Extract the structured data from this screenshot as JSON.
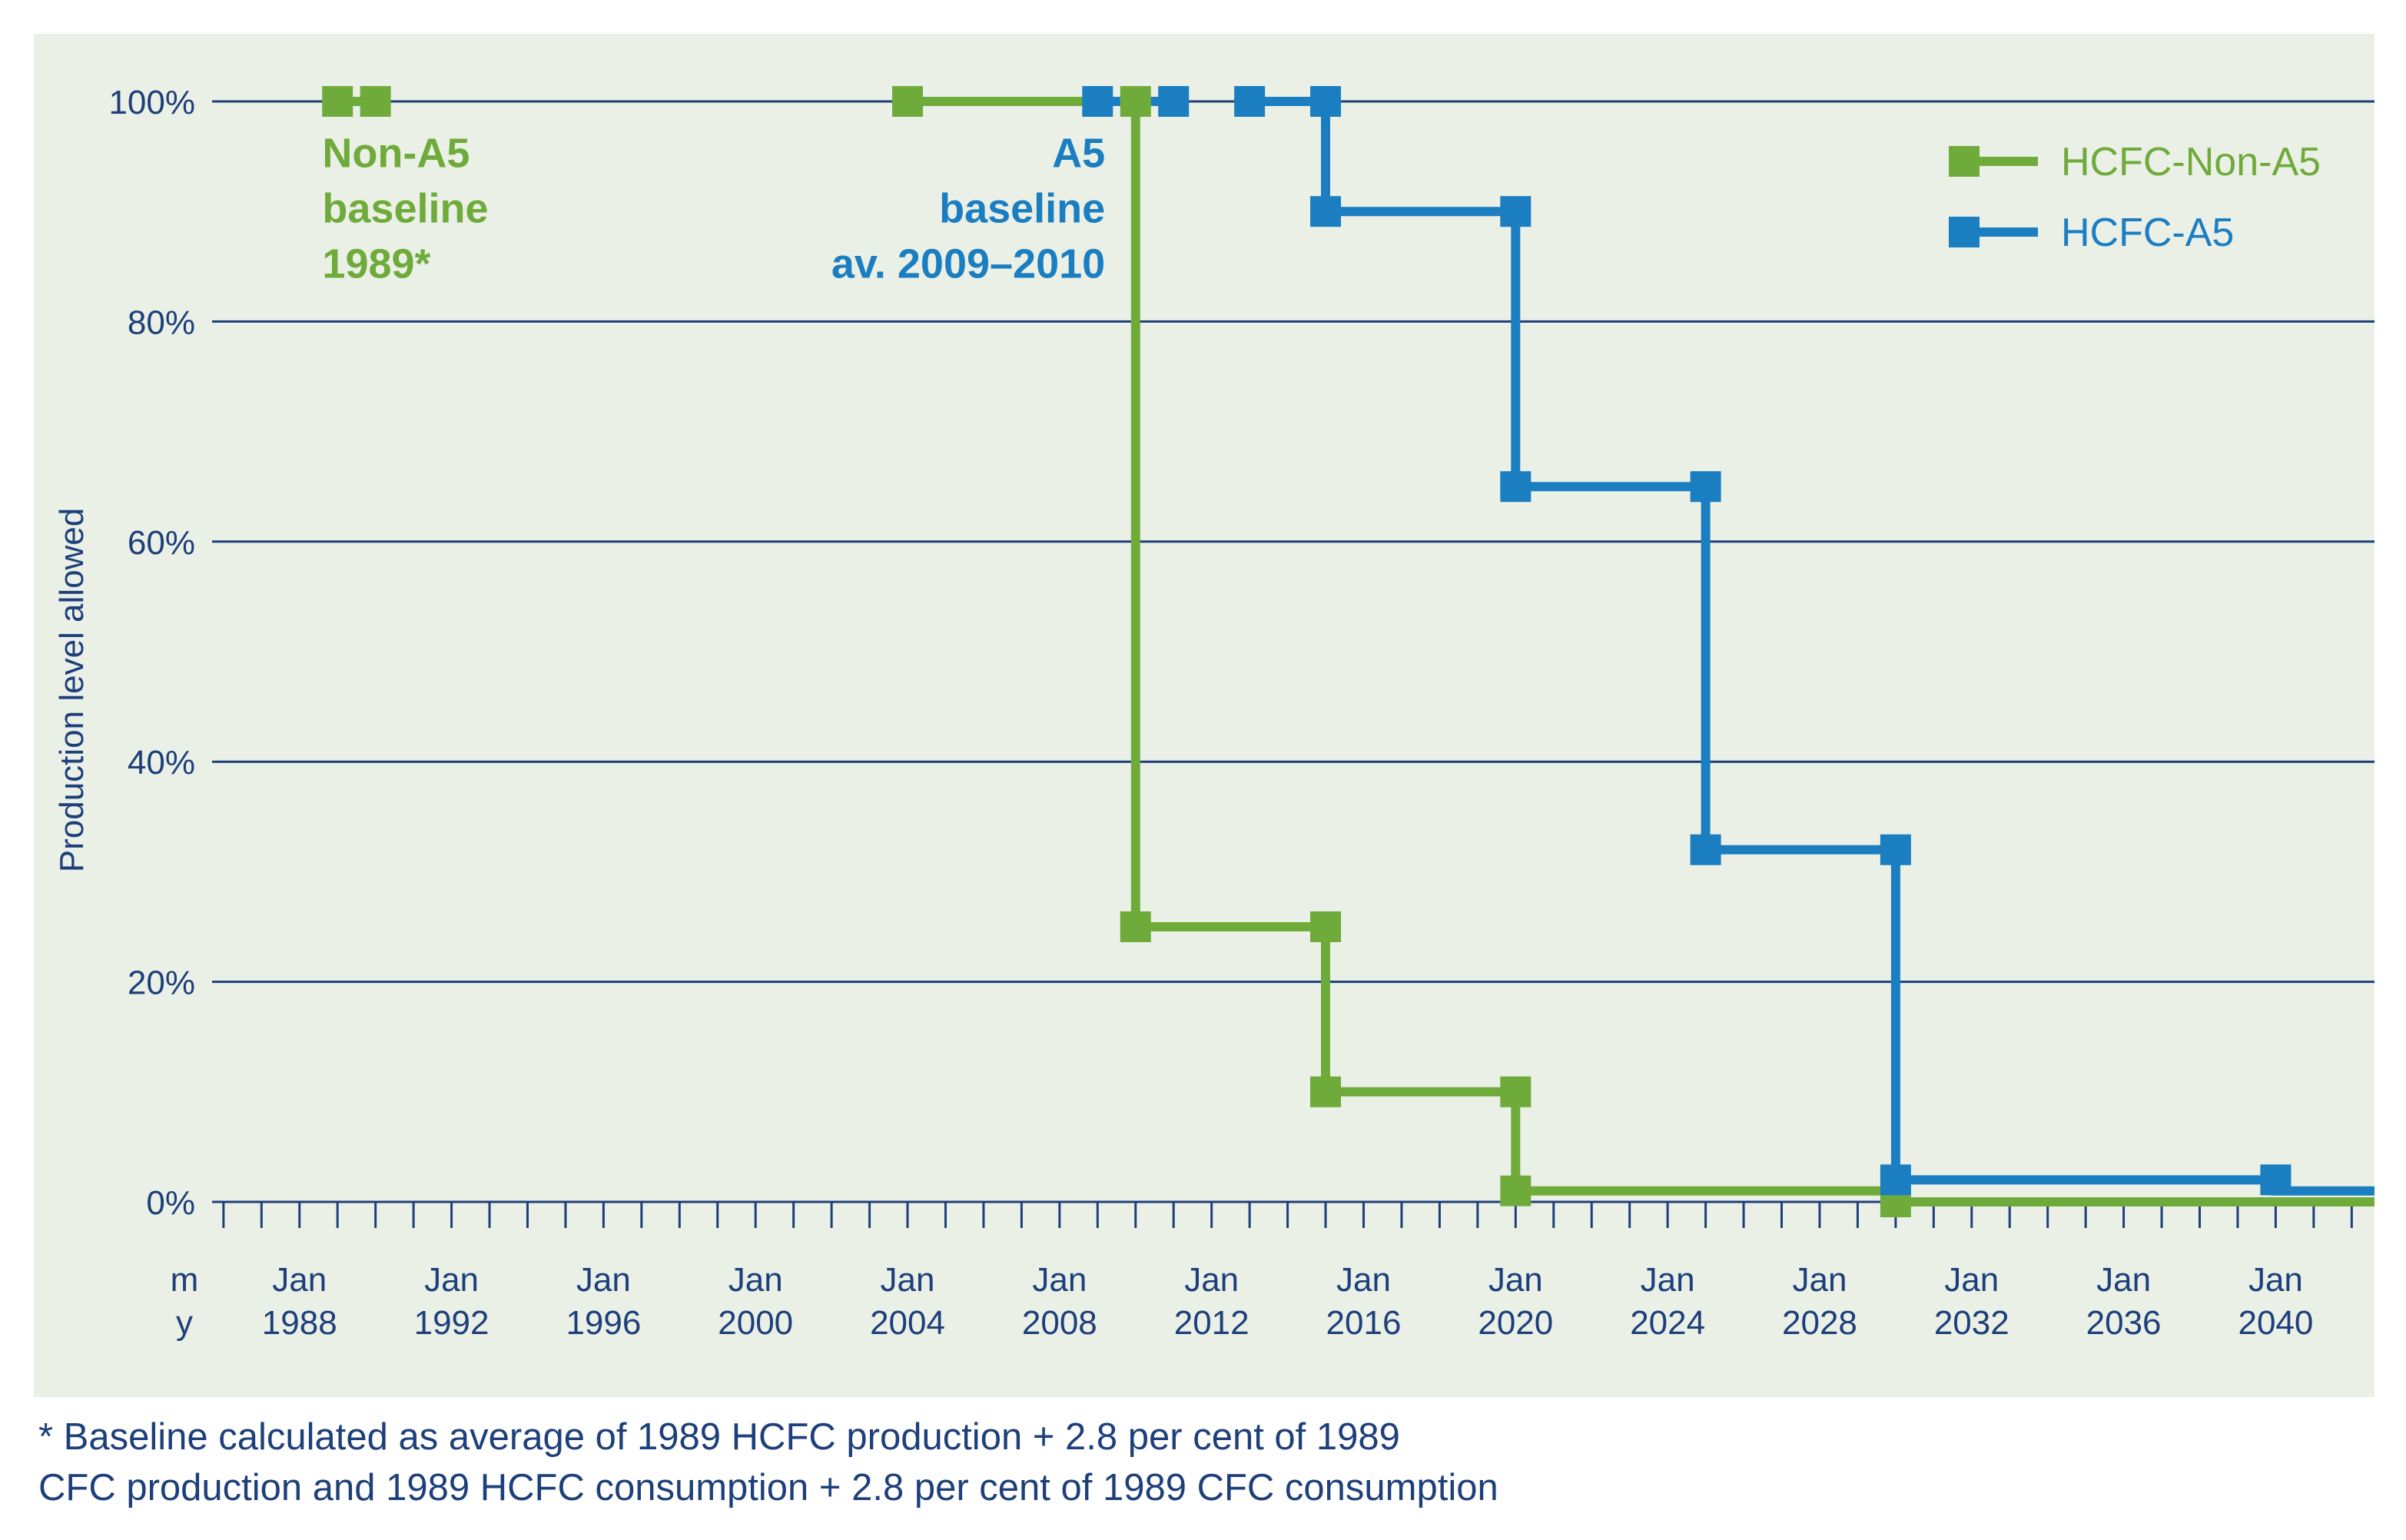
{
  "chart_data": {
    "type": "line",
    "step": true,
    "title": "",
    "xlabel": "",
    "ylabel": "Production level allowed",
    "xlim": [
      1985.7,
      2042.6
    ],
    "ylim": [
      0,
      100
    ],
    "grid": true,
    "y_ticks": [
      0,
      20,
      40,
      60,
      80,
      100
    ],
    "y_tick_labels": [
      "0%",
      "20%",
      "40%",
      "60%",
      "80%",
      "100%"
    ],
    "x_axis_row_labels": [
      "m",
      "y"
    ],
    "x_tick_labels": [
      {
        "x": 1988,
        "month": "Jan",
        "year": "1988"
      },
      {
        "x": 1992,
        "month": "Jan",
        "year": "1992"
      },
      {
        "x": 1996,
        "month": "Jan",
        "year": "1996"
      },
      {
        "x": 2000,
        "month": "Jan",
        "year": "2000"
      },
      {
        "x": 2004,
        "month": "Jan",
        "year": "2004"
      },
      {
        "x": 2008,
        "month": "Jan",
        "year": "2008"
      },
      {
        "x": 2012,
        "month": "Jan",
        "year": "2012"
      },
      {
        "x": 2016,
        "month": "Jan",
        "year": "2016"
      },
      {
        "x": 2020,
        "month": "Jan",
        "year": "2020"
      },
      {
        "x": 2024,
        "month": "Jan",
        "year": "2024"
      },
      {
        "x": 2028,
        "month": "Jan",
        "year": "2028"
      },
      {
        "x": 2032,
        "month": "Jan",
        "year": "2032"
      },
      {
        "x": 2036,
        "month": "Jan",
        "year": "2036"
      },
      {
        "x": 2040,
        "month": "Jan",
        "year": "2040"
      }
    ],
    "series": [
      {
        "name": "HCFC-Non-A5",
        "color": "#6fab3b",
        "segments": [
          [
            [
              1989,
              100
            ],
            [
              1990,
              100
            ]
          ],
          [
            [
              2004,
              100
            ],
            [
              2010,
              100
            ],
            [
              2010,
              25
            ],
            [
              2015,
              25
            ],
            [
              2015,
              10
            ],
            [
              2020,
              10
            ],
            [
              2020,
              1
            ],
            [
              2030,
              1
            ],
            [
              2030,
              0
            ],
            [
              2040,
              0
            ],
            [
              2042.6,
              0
            ]
          ]
        ],
        "markers": [
          [
            1989,
            100
          ],
          [
            1990,
            100
          ],
          [
            2004,
            100
          ],
          [
            2010,
            100
          ],
          [
            2010,
            25
          ],
          [
            2015,
            25
          ],
          [
            2015,
            10
          ],
          [
            2020,
            10
          ],
          [
            2020,
            1
          ],
          [
            2030,
            0
          ]
        ]
      },
      {
        "name": "HCFC-A5",
        "color": "#1a7ec1",
        "segments": [
          [
            [
              2009,
              100
            ],
            [
              2011,
              100
            ]
          ],
          [
            [
              2013,
              100
            ],
            [
              2015,
              100
            ],
            [
              2015,
              90
            ],
            [
              2020,
              90
            ],
            [
              2020,
              65
            ],
            [
              2025,
              65
            ],
            [
              2025,
              32
            ],
            [
              2030,
              32
            ],
            [
              2030,
              2
            ],
            [
              2040,
              2
            ],
            [
              2040,
              1
            ],
            [
              2042.6,
              1
            ]
          ]
        ],
        "markers": [
          [
            2009,
            100
          ],
          [
            2011,
            100
          ],
          [
            2013,
            100
          ],
          [
            2015,
            100
          ],
          [
            2015,
            90
          ],
          [
            2020,
            90
          ],
          [
            2020,
            65
          ],
          [
            2025,
            65
          ],
          [
            2025,
            32
          ],
          [
            2030,
            32
          ],
          [
            2030,
            2
          ],
          [
            2040,
            2
          ]
        ]
      }
    ],
    "legend": {
      "placement": "top-right",
      "entries": [
        "HCFC-Non-A5",
        "HCFC-A5"
      ]
    },
    "annotations": [
      {
        "lines": [
          "Non-A5",
          "baseline",
          "1989*"
        ],
        "color": "#6fab3b",
        "anchor_x": 1988.6,
        "anchor_y": 95,
        "align": "left"
      },
      {
        "lines": [
          "A5",
          "baseline",
          "av. 2009–2010"
        ],
        "color": "#1a7ec1",
        "anchor_x": 2009.2,
        "anchor_y": 95,
        "align": "right"
      }
    ],
    "colors": {
      "plot_background": "#ebf0e7",
      "grid": "#1d3f7a",
      "text": "#1d3f7a"
    }
  },
  "footnote": {
    "line1": "* Baseline calculated as average of 1989 HCFC production + 2.8 per cent of 1989",
    "line2": "CFC production and 1989 HCFC consumption + 2.8 per cent of 1989 CFC consumption"
  }
}
